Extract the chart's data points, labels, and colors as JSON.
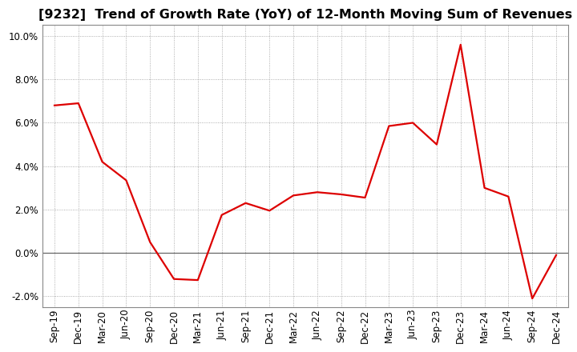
{
  "title": "[9232]  Trend of Growth Rate (YoY) of 12-Month Moving Sum of Revenues",
  "x_labels": [
    "Sep-19",
    "Dec-19",
    "Mar-20",
    "Jun-20",
    "Sep-20",
    "Dec-20",
    "Mar-21",
    "Jun-21",
    "Sep-21",
    "Dec-21",
    "Mar-22",
    "Jun-22",
    "Sep-22",
    "Dec-22",
    "Mar-23",
    "Jun-23",
    "Sep-23",
    "Dec-23",
    "Mar-24",
    "Jun-24",
    "Sep-24",
    "Dec-24"
  ],
  "y_values": [
    6.8,
    6.9,
    4.2,
    3.35,
    0.5,
    -1.2,
    -1.25,
    1.75,
    2.3,
    1.95,
    2.65,
    2.8,
    2.7,
    2.55,
    5.85,
    6.0,
    5.0,
    9.6,
    3.0,
    2.6,
    -2.1,
    -0.1
  ],
  "line_color": "#dd0000",
  "line_width": 1.6,
  "ylim": [
    -2.5,
    10.5
  ],
  "yticks": [
    -2.0,
    0.0,
    2.0,
    4.0,
    6.0,
    8.0,
    10.0
  ],
  "background_color": "#ffffff",
  "grid_color": "#999999",
  "zero_line_color": "#666666",
  "title_fontsize": 11.5,
  "tick_fontsize": 8.5
}
